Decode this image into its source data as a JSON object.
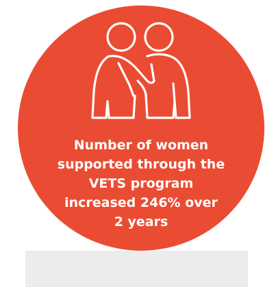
{
  "infographic": {
    "stat_lines": [
      "Number of women",
      "supported through the",
      "VETS program",
      "increased 246% over",
      "2 years"
    ]
  },
  "colors": {
    "circle": "#ea4c33",
    "text": "#ffffff",
    "icon_stroke": "#ffffff",
    "footer_bar": "#ececec"
  },
  "icons": {
    "main": "two-people-embrace-icon"
  }
}
